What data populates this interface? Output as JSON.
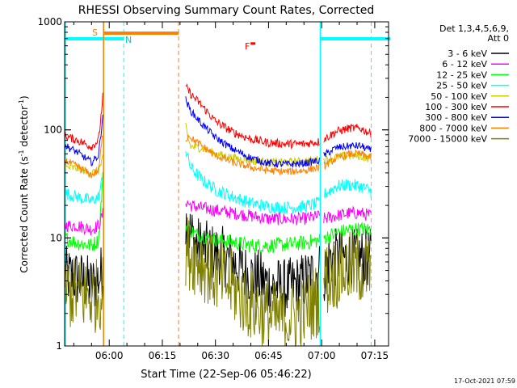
{
  "chart_data": {
    "type": "line",
    "title": "RHESSI Observing Summary Count Rates, Corrected",
    "xlabel": "Start Time (22-Sep-06 05:46:22)",
    "ylabel": "Corrected Count Rate (s",
    "ylabel_sup1": "-1",
    "ylabel_mid": " detector",
    "ylabel_sup2": "-1",
    "ylabel_end": ")",
    "yscale": "log",
    "ylim": [
      1,
      1000
    ],
    "xlim_minutes": [
      -12.6,
      78.9
    ],
    "x_ticks": [
      {
        "label": "06:00",
        "minute": 0
      },
      {
        "label": "06:15",
        "minute": 15
      },
      {
        "label": "06:30",
        "minute": 30
      },
      {
        "label": "06:45",
        "minute": 45
      },
      {
        "label": "07:00",
        "minute": 60
      },
      {
        "label": "07:15",
        "minute": 75
      }
    ],
    "y_tick_labels": [
      {
        "label": "1",
        "value": 1
      },
      {
        "label": "10",
        "value": 10
      },
      {
        "label": "100",
        "value": 100
      },
      {
        "label": "1000",
        "value": 1000
      }
    ],
    "legend_header": [
      "Det 1,3,4,5,6,9,",
      "Att 0"
    ],
    "legend_position": "right",
    "footer_date": "17-Oct-2021 07:59",
    "annotations": {
      "saa": "S",
      "night": "N",
      "flare": "F"
    },
    "night_intervals_minutes": [
      [
        -12.6,
        -1.6
      ],
      [
        59.6,
        78.9
      ]
    ],
    "night_boundary_minutes": [
      -1.6,
      4.1,
      59.6,
      74.0
    ],
    "saa_interval_minutes": [
      -1.6,
      19.6
    ],
    "gaps_minutes": [
      [
        -1.6,
        21.5
      ],
      [
        59.6,
        60.5
      ]
    ],
    "flare_marker_minute": 40.6,
    "flare_marker_value": 630,
    "segments_minutes": [
      [
        -12.6,
        -1.7
      ],
      [
        21.6,
        59.5
      ],
      [
        60.6,
        74.0
      ]
    ],
    "series": [
      {
        "name": "3 - 6 keV",
        "color": "#000000",
        "noise": 0.28,
        "points": [
          [
            -12.6,
            4.5
          ],
          [
            -9,
            4.2
          ],
          [
            -5,
            3.6
          ],
          [
            -3,
            4.2
          ],
          [
            -1.7,
            5.0
          ],
          [
            21.6,
            14
          ],
          [
            23,
            11
          ],
          [
            25,
            8.5
          ],
          [
            28,
            7.5
          ],
          [
            32,
            6.8
          ],
          [
            35,
            6.0
          ],
          [
            38,
            4.8
          ],
          [
            42,
            4.2
          ],
          [
            46,
            3.6
          ],
          [
            50,
            3.4
          ],
          [
            54,
            3.8
          ],
          [
            59.5,
            5.0
          ],
          [
            60.6,
            4.5
          ],
          [
            62,
            6.5
          ],
          [
            66,
            6.5
          ],
          [
            70,
            6.5
          ],
          [
            74,
            6.5
          ]
        ]
      },
      {
        "name": "6 - 12 keV",
        "color": "#ff00ff",
        "noise": 0.06,
        "points": [
          [
            -12.6,
            13
          ],
          [
            -9,
            13
          ],
          [
            -5,
            12
          ],
          [
            -3,
            13
          ],
          [
            -1.7,
            17
          ],
          [
            21.6,
            22
          ],
          [
            23,
            20
          ],
          [
            26,
            19
          ],
          [
            30,
            18
          ],
          [
            35,
            17
          ],
          [
            40,
            16
          ],
          [
            45,
            15
          ],
          [
            50,
            15
          ],
          [
            55,
            15
          ],
          [
            59.5,
            16
          ],
          [
            60.6,
            15
          ],
          [
            64,
            16
          ],
          [
            68,
            17
          ],
          [
            71,
            17
          ],
          [
            74,
            16
          ]
        ]
      },
      {
        "name": "12 - 25 keV",
        "color": "#00ff00",
        "noise": 0.07,
        "points": [
          [
            -12.6,
            10
          ],
          [
            -9,
            9
          ],
          [
            -5,
            8.5
          ],
          [
            -3,
            9.5
          ],
          [
            -1.7,
            40
          ],
          [
            21.6,
            13
          ],
          [
            24,
            11
          ],
          [
            28,
            10
          ],
          [
            32,
            9.5
          ],
          [
            36,
            9
          ],
          [
            40,
            8.5
          ],
          [
            45,
            8.5
          ],
          [
            50,
            8.7
          ],
          [
            55,
            9
          ],
          [
            59.5,
            9.5
          ],
          [
            60.6,
            10
          ],
          [
            64,
            11
          ],
          [
            68,
            12
          ],
          [
            71,
            12
          ],
          [
            74,
            12
          ]
        ]
      },
      {
        "name": "25 - 50 keV",
        "color": "#00ffff",
        "noise": 0.06,
        "points": [
          [
            -12.6,
            26
          ],
          [
            -9,
            24
          ],
          [
            -5,
            22
          ],
          [
            -3,
            24
          ],
          [
            -1.7,
            38
          ],
          [
            21.6,
            65
          ],
          [
            23,
            45
          ],
          [
            26,
            35
          ],
          [
            30,
            28
          ],
          [
            35,
            24
          ],
          [
            40,
            21
          ],
          [
            45,
            19.5
          ],
          [
            50,
            19
          ],
          [
            55,
            19.5
          ],
          [
            59.5,
            21
          ],
          [
            60.6,
            25
          ],
          [
            64,
            30
          ],
          [
            68,
            31
          ],
          [
            71,
            30
          ],
          [
            74,
            27
          ]
        ]
      },
      {
        "name": "50 - 100 keV",
        "color": "#cccc00",
        "noise": 0.04,
        "points": [
          [
            -12.6,
            45
          ],
          [
            -9,
            44
          ],
          [
            -5,
            40
          ],
          [
            -3,
            42
          ],
          [
            -1.7,
            55
          ],
          [
            21.6,
            110
          ],
          [
            22.2,
            85
          ],
          [
            23,
            70
          ],
          [
            26,
            68
          ],
          [
            30,
            60
          ],
          [
            35,
            55
          ],
          [
            40,
            52
          ],
          [
            45,
            50
          ],
          [
            50,
            50
          ],
          [
            55,
            51
          ],
          [
            59.5,
            53
          ],
          [
            60.6,
            52
          ],
          [
            64,
            56
          ],
          [
            68,
            58
          ],
          [
            71,
            57
          ],
          [
            74,
            54
          ]
        ]
      },
      {
        "name": "100 - 300 keV",
        "color": "#ff0000",
        "noise": 0.04,
        "points": [
          [
            -12.6,
            88
          ],
          [
            -9,
            80
          ],
          [
            -5,
            70
          ],
          [
            -3,
            80
          ],
          [
            -1.7,
            220
          ],
          [
            21.6,
            250
          ],
          [
            23,
            215
          ],
          [
            26,
            170
          ],
          [
            30,
            120
          ],
          [
            35,
            95
          ],
          [
            40,
            82
          ],
          [
            45,
            76
          ],
          [
            50,
            74
          ],
          [
            55,
            74
          ],
          [
            59.5,
            78
          ],
          [
            60.6,
            82
          ],
          [
            64,
            96
          ],
          [
            68,
            104
          ],
          [
            71,
            103
          ],
          [
            74,
            92
          ]
        ]
      },
      {
        "name": "300 - 800 keV",
        "color": "#0000ff",
        "noise": 0.035,
        "points": [
          [
            -12.6,
            72
          ],
          [
            -9,
            62
          ],
          [
            -5,
            50
          ],
          [
            -3,
            58
          ],
          [
            -1.7,
            150
          ],
          [
            21.6,
            190
          ],
          [
            23,
            150
          ],
          [
            26,
            115
          ],
          [
            30,
            85
          ],
          [
            35,
            66
          ],
          [
            40,
            55
          ],
          [
            45,
            49
          ],
          [
            50,
            48
          ],
          [
            55,
            49
          ],
          [
            59.5,
            52
          ],
          [
            60.6,
            58
          ],
          [
            64,
            68
          ],
          [
            68,
            71
          ],
          [
            71,
            71
          ],
          [
            74,
            64
          ]
        ]
      },
      {
        "name": "800 - 7000 keV",
        "color": "#ff8000",
        "noise": 0.035,
        "points": [
          [
            -12.6,
            52
          ],
          [
            -9,
            46
          ],
          [
            -5,
            38
          ],
          [
            -3,
            42
          ],
          [
            -1.7,
            100
          ],
          [
            21.6,
            80
          ],
          [
            22.5,
            90
          ],
          [
            23.5,
            82
          ],
          [
            26,
            72
          ],
          [
            30,
            58
          ],
          [
            35,
            50
          ],
          [
            40,
            45
          ],
          [
            45,
            42
          ],
          [
            50,
            41
          ],
          [
            55,
            42
          ],
          [
            59.5,
            45
          ],
          [
            60.6,
            46
          ],
          [
            64,
            54
          ],
          [
            68,
            60
          ],
          [
            71,
            60
          ],
          [
            74,
            55
          ]
        ]
      },
      {
        "name": "7000 - 15000 keV",
        "color": "#808000",
        "noise": 0.35,
        "points": [
          [
            -12.6,
            3.2
          ],
          [
            -9,
            3.0
          ],
          [
            -5,
            2.8
          ],
          [
            -3,
            3.0
          ],
          [
            -1.7,
            3.2
          ],
          [
            21.6,
            8
          ],
          [
            23,
            7
          ],
          [
            26,
            6
          ],
          [
            30,
            4.5
          ],
          [
            35,
            3.5
          ],
          [
            38,
            2.7
          ],
          [
            42,
            2.2
          ],
          [
            46,
            1.8
          ],
          [
            50,
            1.8
          ],
          [
            54,
            2.0
          ],
          [
            59.5,
            2.8
          ],
          [
            60.6,
            4.0
          ],
          [
            64,
            4.8
          ],
          [
            68,
            5.2
          ],
          [
            71,
            5.2
          ],
          [
            74,
            4.8
          ]
        ]
      }
    ]
  }
}
